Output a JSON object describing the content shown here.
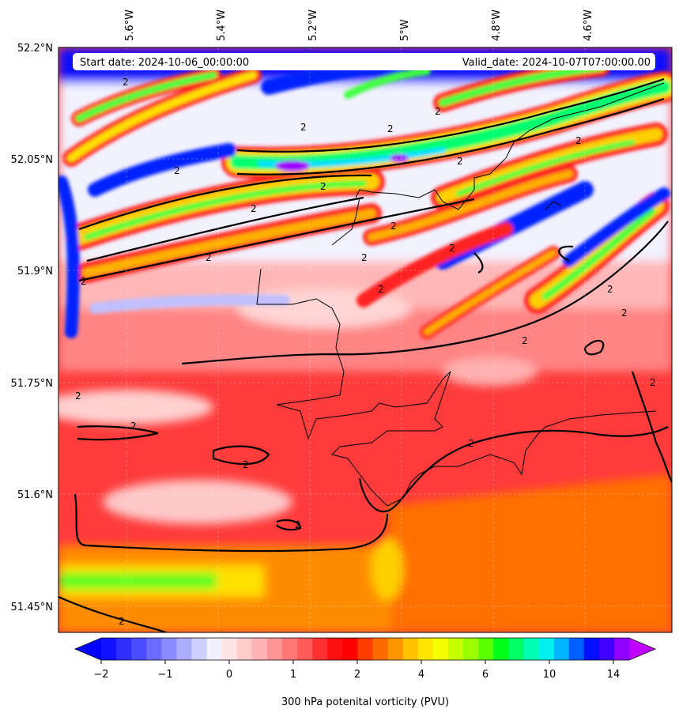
{
  "map": {
    "header": {
      "start_date": "Start date: 2024-10-06_00:00:00",
      "valid_date": "Valid_date: 2024-10-07T07:00:00.00"
    },
    "lon_labels": [
      "5.6°W",
      "5.4°W",
      "5.2°W",
      "5°W",
      "4.8°W",
      "4.6°W"
    ],
    "lat_labels": [
      "52.2°N",
      "52.05°N",
      "51.9°N",
      "51.75°N",
      "51.6°N",
      "51.45°N"
    ],
    "contour_label": "2",
    "colorbar": {
      "title": "300 hPa potenital vorticity (PVU)",
      "tick_labels": [
        "−2",
        "−1",
        "0",
        "1",
        "2",
        "4",
        "6",
        "10",
        "14"
      ],
      "colors": [
        "#1010ff",
        "#2e2eff",
        "#4b4bff",
        "#6b6bff",
        "#8c8cff",
        "#acacff",
        "#cfcfff",
        "#f0f0ff",
        "#ffe4e6",
        "#ffcccc",
        "#ffb3b3",
        "#ff9494",
        "#ff7676",
        "#ff5a5a",
        "#ff3030",
        "#ff1010",
        "#ff0000",
        "#ff3d00",
        "#ff6a00",
        "#ff9600",
        "#ffc000",
        "#ffe600",
        "#f5ff00",
        "#c8ff00",
        "#9bff00",
        "#5cff00",
        "#00ff1a",
        "#00ff66",
        "#00ffb3",
        "#00f0f0",
        "#00b4ff",
        "#0060ff",
        "#0010ff",
        "#4000ff",
        "#9000ff"
      ],
      "under_color": "#0000ff",
      "over_color": "#c000ff"
    }
  }
}
